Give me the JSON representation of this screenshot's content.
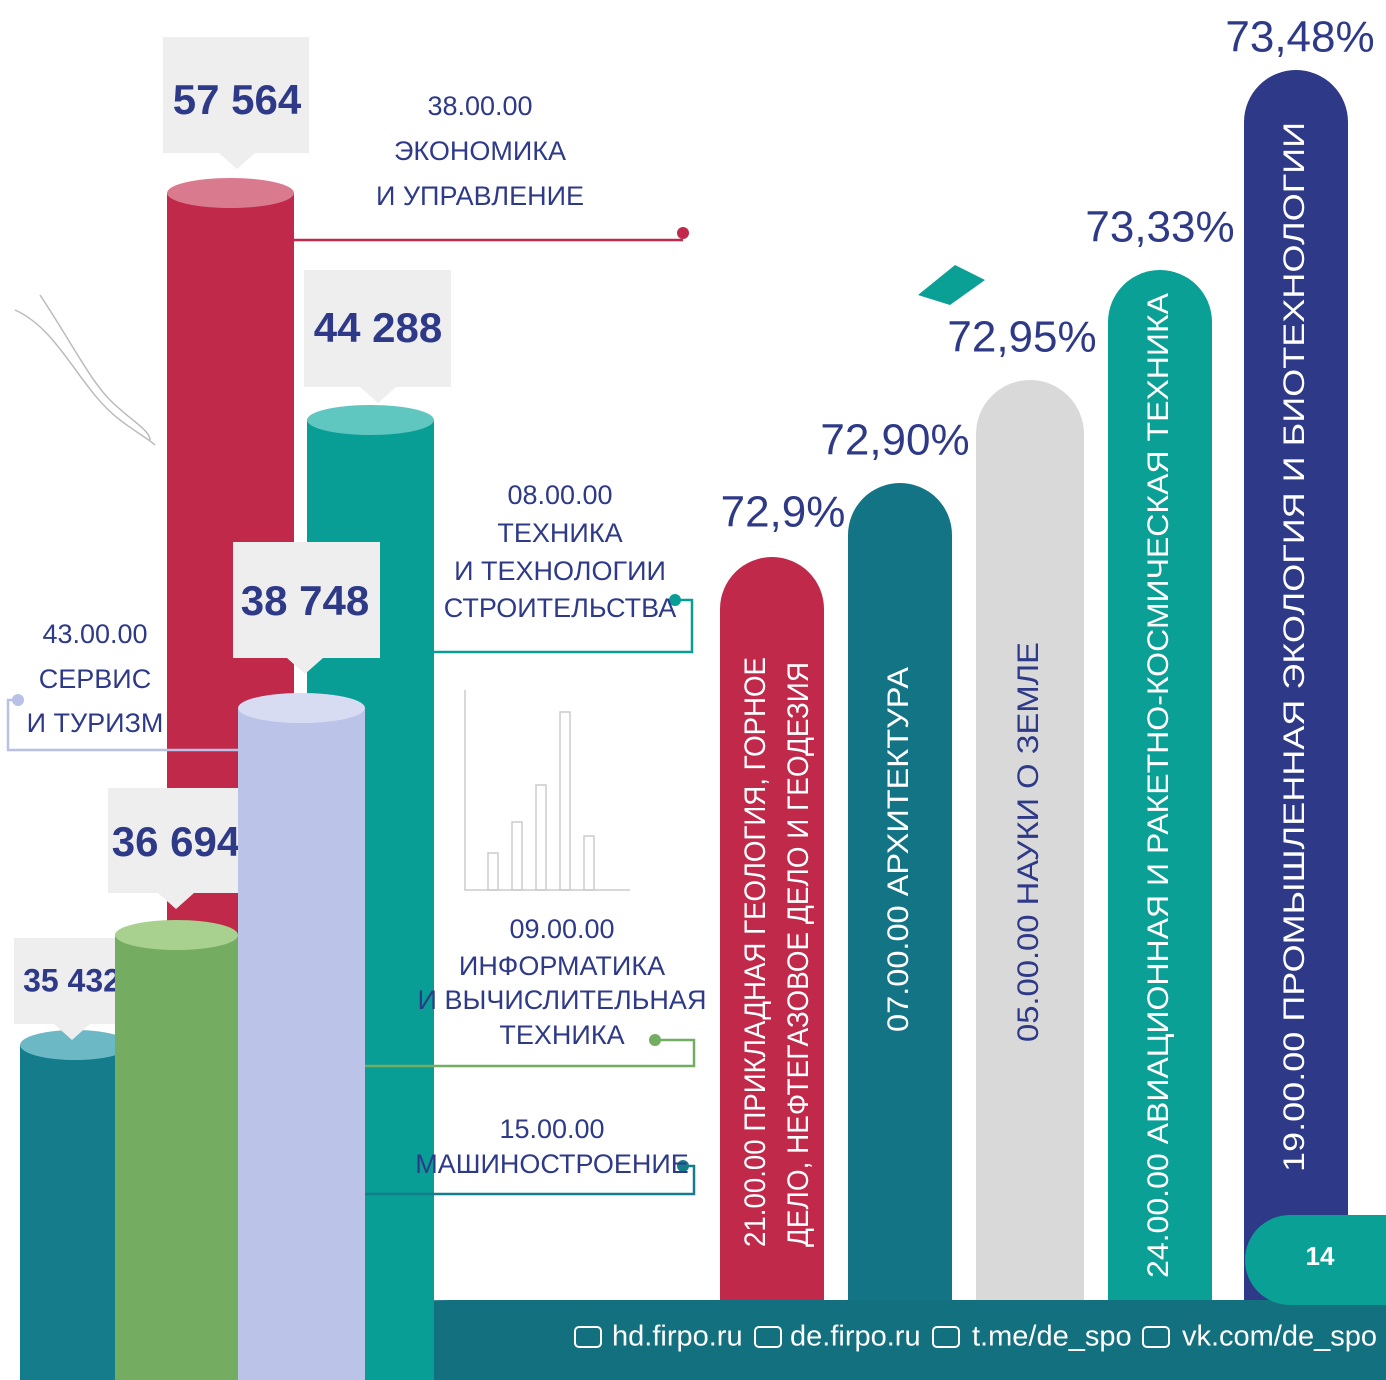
{
  "cylinders": [
    {
      "value": "57 564",
      "code": "38.00.00",
      "name_lines": [
        "ЭКОНОМИКА",
        "И УПРАВЛЕНИЕ"
      ]
    },
    {
      "value": "44 288",
      "code": "08.00.00",
      "name_lines": [
        "ТЕХНИКА",
        "И ТЕХНОЛОГИИ",
        "СТРОИТЕЛЬСТВА"
      ]
    },
    {
      "value": "38 748",
      "code": "43.00.00",
      "name_lines": [
        "СЕРВИС",
        "И ТУРИЗМ"
      ]
    },
    {
      "value": "36 694",
      "code": "09.00.00",
      "name_lines": [
        "ИНФОРМАТИКА",
        "И ВЫЧИСЛИТЕЛЬНАЯ",
        "ТЕХНИКА"
      ]
    },
    {
      "value": "35 432",
      "code": "15.00.00",
      "name_lines": [
        "МАШИНОСТРОЕНИЕ"
      ]
    }
  ],
  "pills": [
    {
      "percent": "72,9%",
      "label_lines": [
        "21.00.00 ПРИКЛАДНАЯ ГЕОЛОГИЯ, ГОРНОЕ",
        "ДЕЛО, НЕФТЕГАЗОВОЕ ДЕЛО И ГЕОДЕЗИЯ"
      ]
    },
    {
      "percent": "72,90%",
      "label_lines": [
        "07.00.00 АРХИТЕКТУРА"
      ]
    },
    {
      "percent": "72,95%",
      "label_lines": [
        "05.00.00 НАУКИ О ЗЕМЛЕ"
      ]
    },
    {
      "percent": "73,33%",
      "label_lines": [
        "24.00.00 АВИАЦИОННАЯ И РАКЕТНО-КОСМИЧЕСКАЯ ТЕХНИКА"
      ]
    },
    {
      "percent": "73,48%",
      "label_lines": [
        "19.00.00 ПРОМЫШЛЕННАЯ ЭКОЛОГИЯ И БИОТЕХНОЛОГИИ"
      ]
    }
  ],
  "page_number": "14",
  "footer": {
    "links": [
      "hd.firpo.ru",
      "de.firpo.ru",
      "t.me/de_spo",
      "vk.com/de_spo"
    ]
  }
}
